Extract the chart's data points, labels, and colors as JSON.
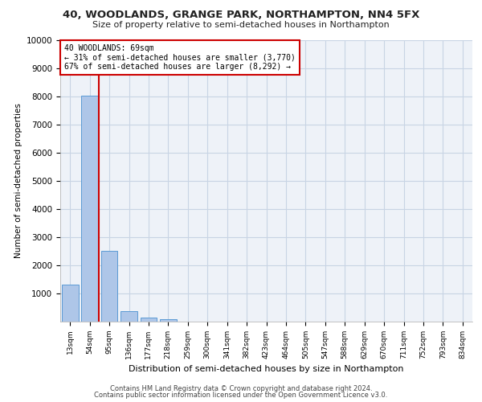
{
  "title1": "40, WOODLANDS, GRANGE PARK, NORTHAMPTON, NN4 5FX",
  "title2": "Size of property relative to semi-detached houses in Northampton",
  "xlabel": "Distribution of semi-detached houses by size in Northampton",
  "ylabel": "Number of semi-detached properties",
  "categories": [
    "13sqm",
    "54sqm",
    "95sqm",
    "136sqm",
    "177sqm",
    "218sqm",
    "259sqm",
    "300sqm",
    "341sqm",
    "382sqm",
    "423sqm",
    "464sqm",
    "505sqm",
    "547sqm",
    "588sqm",
    "629sqm",
    "670sqm",
    "711sqm",
    "752sqm",
    "793sqm",
    "834sqm"
  ],
  "values": [
    1310,
    8020,
    2520,
    380,
    150,
    100,
    0,
    0,
    0,
    0,
    0,
    0,
    0,
    0,
    0,
    0,
    0,
    0,
    0,
    0,
    0
  ],
  "bar_color": "#aec6e8",
  "bar_edge_color": "#5b9bd5",
  "marker_label": "40 WOODLANDS: 69sqm",
  "annotation_line1": "← 31% of semi-detached houses are smaller (3,770)",
  "annotation_line2": "67% of semi-detached houses are larger (8,292) →",
  "marker_color": "#cc0000",
  "box_edge_color": "#cc0000",
  "ylim": [
    0,
    10000
  ],
  "yticks": [
    0,
    1000,
    2000,
    3000,
    4000,
    5000,
    6000,
    7000,
    8000,
    9000,
    10000
  ],
  "footer1": "Contains HM Land Registry data © Crown copyright and database right 2024.",
  "footer2": "Contains public sector information licensed under the Open Government Licence v3.0.",
  "bg_color": "#eef2f8",
  "grid_color": "#c8d4e4"
}
